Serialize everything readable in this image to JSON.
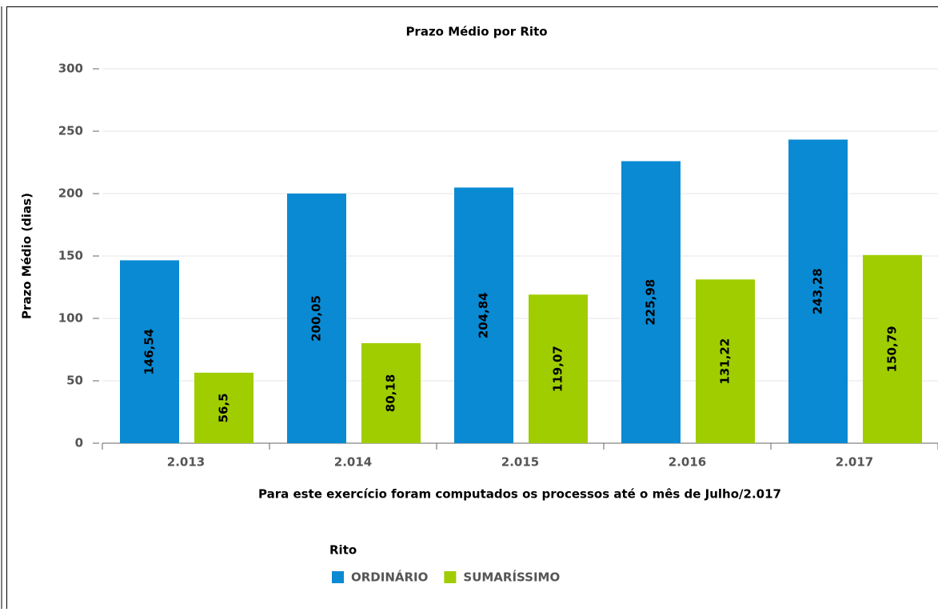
{
  "chart_data": {
    "type": "bar",
    "title": "Prazo Médio por Rito",
    "y_label": "Prazo Médio (dias)",
    "x_label": "Para este exercício foram computados os processos até o mês de Julho/2.017",
    "categories": [
      "2.013",
      "2.014",
      "2.015",
      "2.016",
      "2.017"
    ],
    "series": [
      {
        "name": "ORDINÁRIO",
        "color": "#0a8ad3",
        "values": [
          146.54,
          200.05,
          204.84,
          225.98,
          243.28
        ],
        "value_labels": [
          "146,54",
          "200,05",
          "204,84",
          "225,98",
          "243,28"
        ]
      },
      {
        "name": "SUMARÍSSIMO",
        "color": "#9fcd00",
        "values": [
          56.5,
          80.18,
          119.07,
          131.22,
          150.79
        ],
        "value_labels": [
          "56,5",
          "80,18",
          "119,07",
          "131,22",
          "150,79"
        ]
      }
    ],
    "legend_title": "Rito",
    "ylim": [
      0,
      300
    ],
    "yticks": [
      0,
      50,
      100,
      150,
      200,
      250,
      300
    ],
    "grid": true
  }
}
